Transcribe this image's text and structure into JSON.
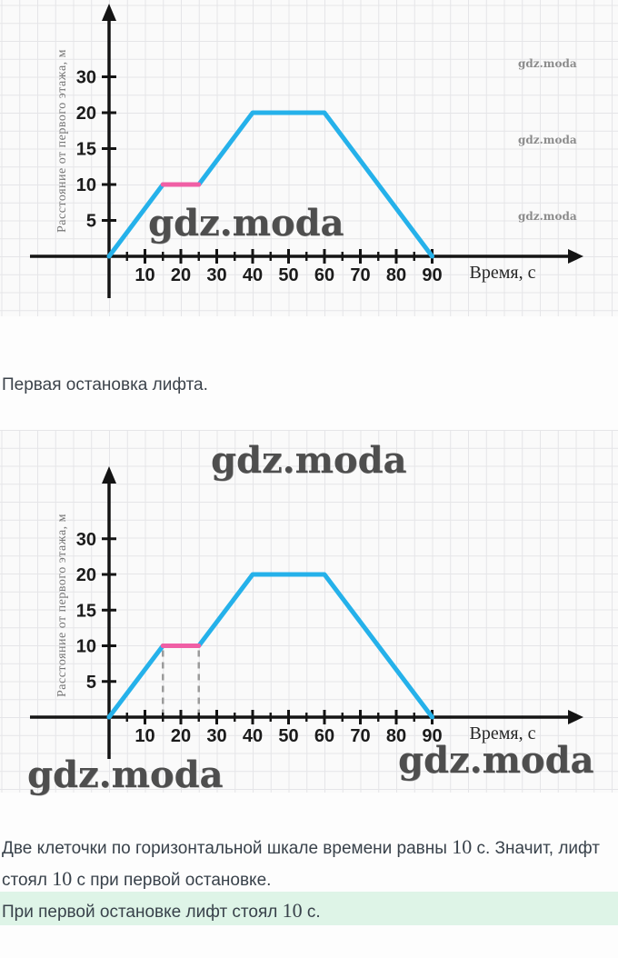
{
  "watermark": {
    "text": "gdz.moda"
  },
  "caption": {
    "text": "Первая остановка лифта."
  },
  "solution": {
    "line1_pre": "Две клеточки по горизонтальной шкале времени равны ",
    "line1_num": "10",
    "line1_post": " с. Значит, лифт",
    "line2_pre": "стоял ",
    "line2_num": "10",
    "line2_post": " с при первой остановке.",
    "answer_pre": "При первой остановке лифт стоял ",
    "answer_num": "10",
    "answer_post": " с.",
    "highlight_color": "#def4e7"
  },
  "chart_data": [
    {
      "type": "line",
      "title": "",
      "xlabel": "Время, с",
      "ylabel": "Расстояние от первого этажа, м",
      "x_ticks": [
        10,
        20,
        30,
        40,
        50,
        60,
        70,
        80,
        90
      ],
      "x_minor_step": 5,
      "y_tick_labels": [
        "5",
        "10",
        "15",
        "20",
        "30"
      ],
      "xlim": [
        0,
        100
      ],
      "ylim": [
        0,
        35
      ],
      "grid": true,
      "legend": "none",
      "dashed_guides_x": [],
      "series": [
        {
          "name": "elevator-distance",
          "color": "#25b1ea",
          "points": [
            [
              0,
              0
            ],
            [
              15,
              10
            ],
            [
              25,
              10
            ],
            [
              40,
              20
            ],
            [
              60,
              20
            ],
            [
              90,
              0
            ]
          ]
        },
        {
          "name": "first-stop-segment",
          "color": "#f05fa5",
          "points": [
            [
              15,
              10
            ],
            [
              25,
              10
            ]
          ]
        }
      ]
    },
    {
      "type": "line",
      "title": "",
      "xlabel": "Время, с",
      "ylabel": "Расстояние от первого этажа, м",
      "x_ticks": [
        10,
        20,
        30,
        40,
        50,
        60,
        70,
        80,
        90
      ],
      "x_minor_step": 5,
      "y_tick_labels": [
        "5",
        "10",
        "15",
        "20",
        "30"
      ],
      "xlim": [
        0,
        100
      ],
      "ylim": [
        0,
        35
      ],
      "grid": true,
      "legend": "none",
      "dashed_guides_x": [
        15,
        25
      ],
      "series": [
        {
          "name": "elevator-distance",
          "color": "#25b1ea",
          "points": [
            [
              0,
              0
            ],
            [
              15,
              10
            ],
            [
              25,
              10
            ],
            [
              40,
              20
            ],
            [
              60,
              20
            ],
            [
              90,
              0
            ]
          ]
        },
        {
          "name": "first-stop-segment",
          "color": "#f05fa5",
          "points": [
            [
              15,
              10
            ],
            [
              25,
              10
            ]
          ]
        }
      ]
    }
  ]
}
